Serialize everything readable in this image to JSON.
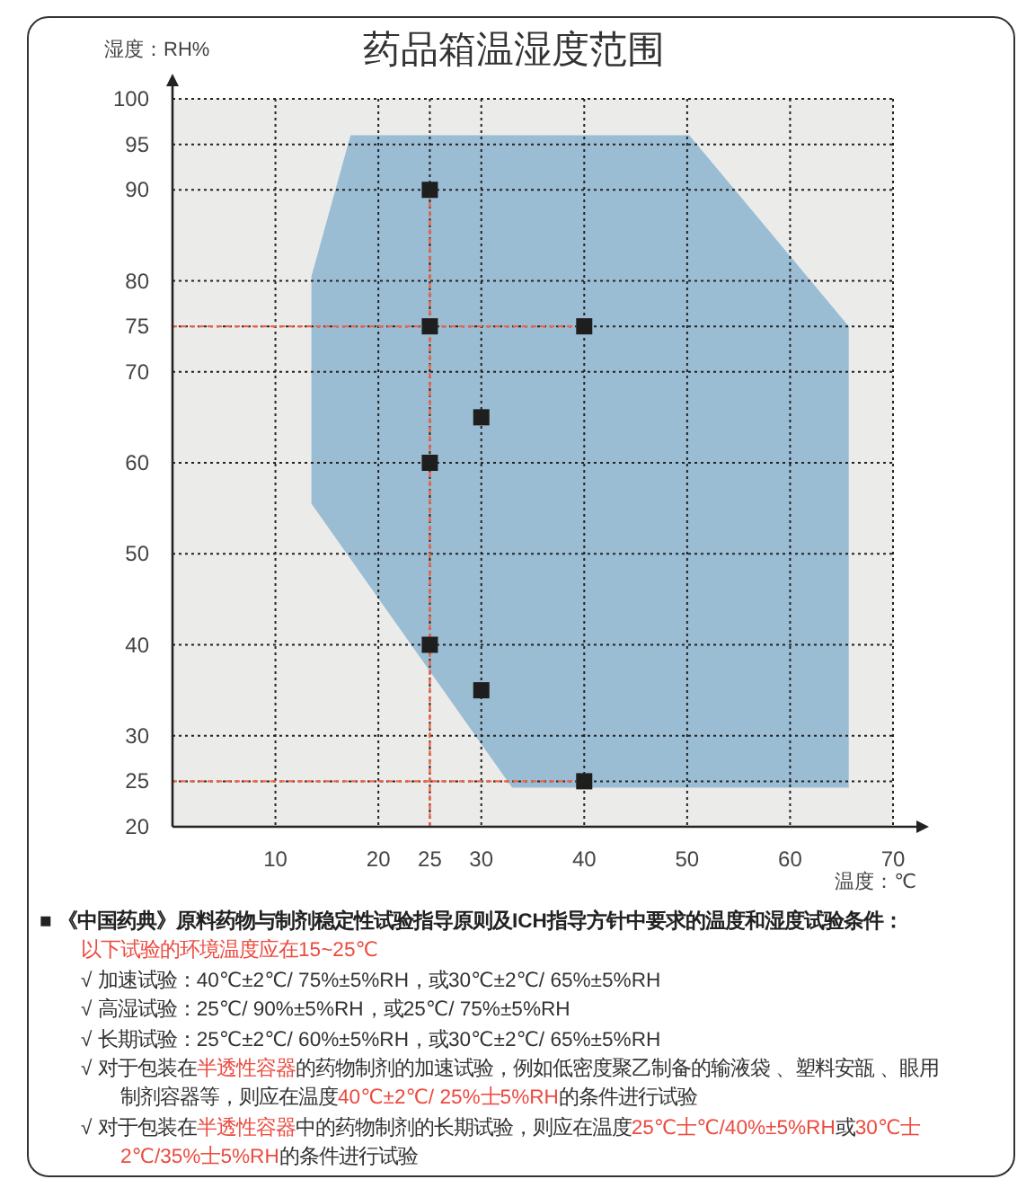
{
  "chart_data": {
    "type": "scatter",
    "title": "药品箱温湿度范围",
    "xlabel": "温度：℃",
    "ylabel": "湿度：RH%",
    "xlim": [
      0,
      70
    ],
    "ylim": [
      20,
      100
    ],
    "xticks": [
      10,
      20,
      25,
      30,
      40,
      50,
      60,
      70
    ],
    "yticks": [
      20,
      25,
      30,
      40,
      50,
      60,
      70,
      75,
      80,
      90,
      95,
      100
    ],
    "grid": true,
    "series": [
      {
        "type": "area",
        "color": "#9abdd4",
        "x": [
          13.5,
          13.5,
          17.3,
          50.2,
          65.7,
          65.7,
          33,
          13.5
        ],
        "values": [
          55.5,
          80.5,
          96,
          96,
          75,
          24.3,
          24.3,
          55.5
        ]
      },
      {
        "type": "line",
        "color": "#ee6548",
        "line_style": "dotted",
        "x": [
          0,
          40
        ],
        "values": [
          75,
          75
        ]
      },
      {
        "type": "line",
        "color": "#ee6548",
        "line_style": "dotted",
        "x": [
          0,
          40
        ],
        "values": [
          25,
          25
        ]
      },
      {
        "type": "line",
        "color": "#ee6548",
        "line_style": "dotted",
        "x": [
          25,
          25
        ],
        "values": [
          20,
          90
        ]
      },
      {
        "color": "#1e1e1e",
        "marker": "square",
        "x": [
          25,
          25,
          25,
          25,
          30,
          30,
          40,
          40
        ],
        "values": [
          90,
          75,
          60,
          40,
          65,
          35,
          75,
          25
        ]
      }
    ],
    "annotations": [
      "■ 《中国药典》原料药物与制剂稳定性试验指导原则及ICH指导方针中要求的温度和湿度试验条件：",
      "以下试验的环境温度应在15~25℃",
      "√ 加速试验：40℃±2℃/ 75%±5%RH，或30℃±2℃/ 65%±5%RH",
      "√ 高湿试验：25℃/ 90%±5%RH，或25℃/ 75%±5%RH",
      "√ 长期试验：25℃±2℃/ 60%±5%RH，或30℃±2℃/ 65%±5%RH",
      "√ 对于包装在",
      "半透性容器",
      "的药物制剂的加速试验，例如低密度聚乙制备的输液袋 、塑料安瓿 、眼用",
      "制剂容器等，则应在温度",
      "40℃±2℃/ 25%士5%RH",
      "的条件进行试验",
      "√ 对于包装在",
      "半透性容器",
      "中的药物制剂的长期试验，则应在温度",
      "25℃士℃/40%±5%RH",
      "或",
      "30℃士",
      "2℃/35%士5%RH",
      "的条件进行试验"
    ]
  }
}
